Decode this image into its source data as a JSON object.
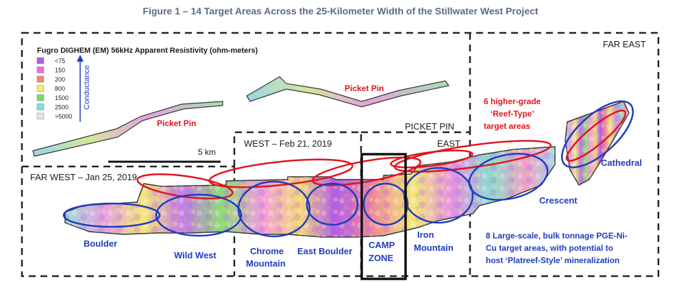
{
  "figure_title": "Figure 1 – 14 Target Areas Across the 25-Kilometer Width of the Stillwater West Project",
  "legend": {
    "title": "Fugro DIGHEM (EM) 56kHz Apparent Resistivity (ohm-meters)",
    "axis_label": "Conductance",
    "items": [
      {
        "label": "<75",
        "color": "#b05ce8"
      },
      {
        "label": "150",
        "color": "#f36ad9"
      },
      {
        "label": "200",
        "color": "#f08a74"
      },
      {
        "label": "800",
        "color": "#f0ec6a"
      },
      {
        "label": "1500",
        "color": "#7fd66a"
      },
      {
        "label": "2500",
        "color": "#74e0e0"
      },
      {
        "label": ">5000",
        "color": "#d8e6f0"
      }
    ]
  },
  "scale_label": "5 km",
  "regions": {
    "far_west": "FAR WEST – Jan 25, 2019",
    "west": "WEST – Feb 21, 2019",
    "picket_pin_east_line1": "PICKET PIN",
    "picket_pin_east_line2": "EAST",
    "far_east": "FAR EAST"
  },
  "red_labels": {
    "picket_pin_1": "Picket Pin",
    "picket_pin_2": "Picket Pin",
    "reef_line1": "6 higher-grade",
    "reef_line2": "‘Reef-Type’",
    "reef_line3": "target areas"
  },
  "targets": {
    "boulder": "Boulder",
    "wild_west": "Wild West",
    "chrome_line1": "Chrome",
    "chrome_line2": "Mountain",
    "east_boulder": "East Boulder",
    "camp_line1": "CAMP",
    "camp_line2": "ZONE",
    "iron_line1": "Iron",
    "iron_line2": "Mountain",
    "crescent": "Crescent",
    "cathedral": "Cathedral"
  },
  "platreef": {
    "line1": "8 Large-scale, bulk tonnage PGE-Ni-",
    "line2": "Cu target areas, with potential to",
    "line3": "host ‘Platreef-Style’ mineralization"
  }
}
